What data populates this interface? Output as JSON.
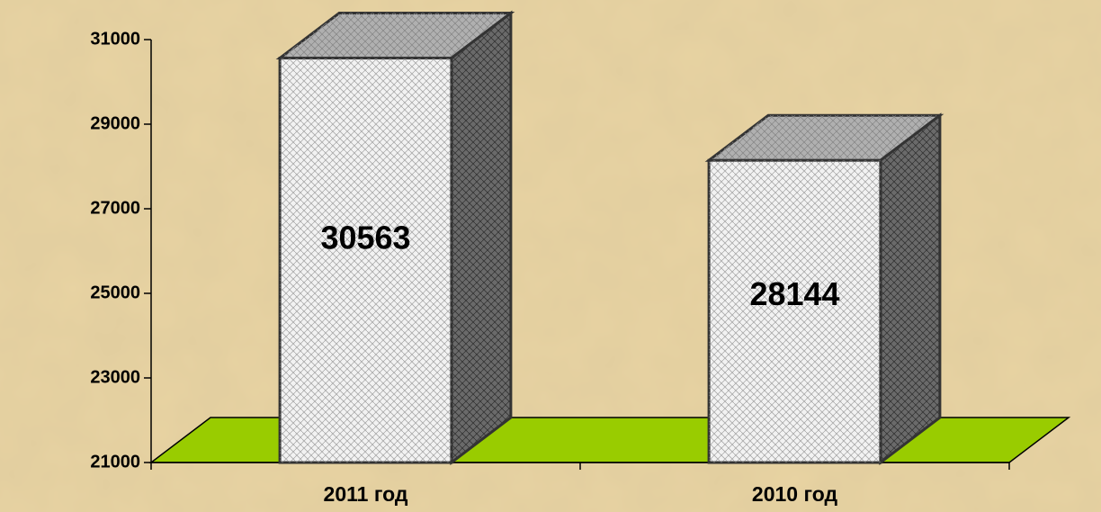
{
  "chart_data": {
    "type": "bar3d",
    "categories": [
      "2011 год",
      "2010 год"
    ],
    "values": [
      30563,
      28144
    ],
    "ylim": [
      21000,
      31000
    ],
    "yticks": [
      21000,
      23000,
      25000,
      27000,
      29000,
      31000
    ],
    "colors": {
      "front": "#f2f2f2",
      "top": "#b0b0b0",
      "side": "#6a6a6a",
      "floor": "#99cc00",
      "background": "#e8d3a2"
    }
  }
}
